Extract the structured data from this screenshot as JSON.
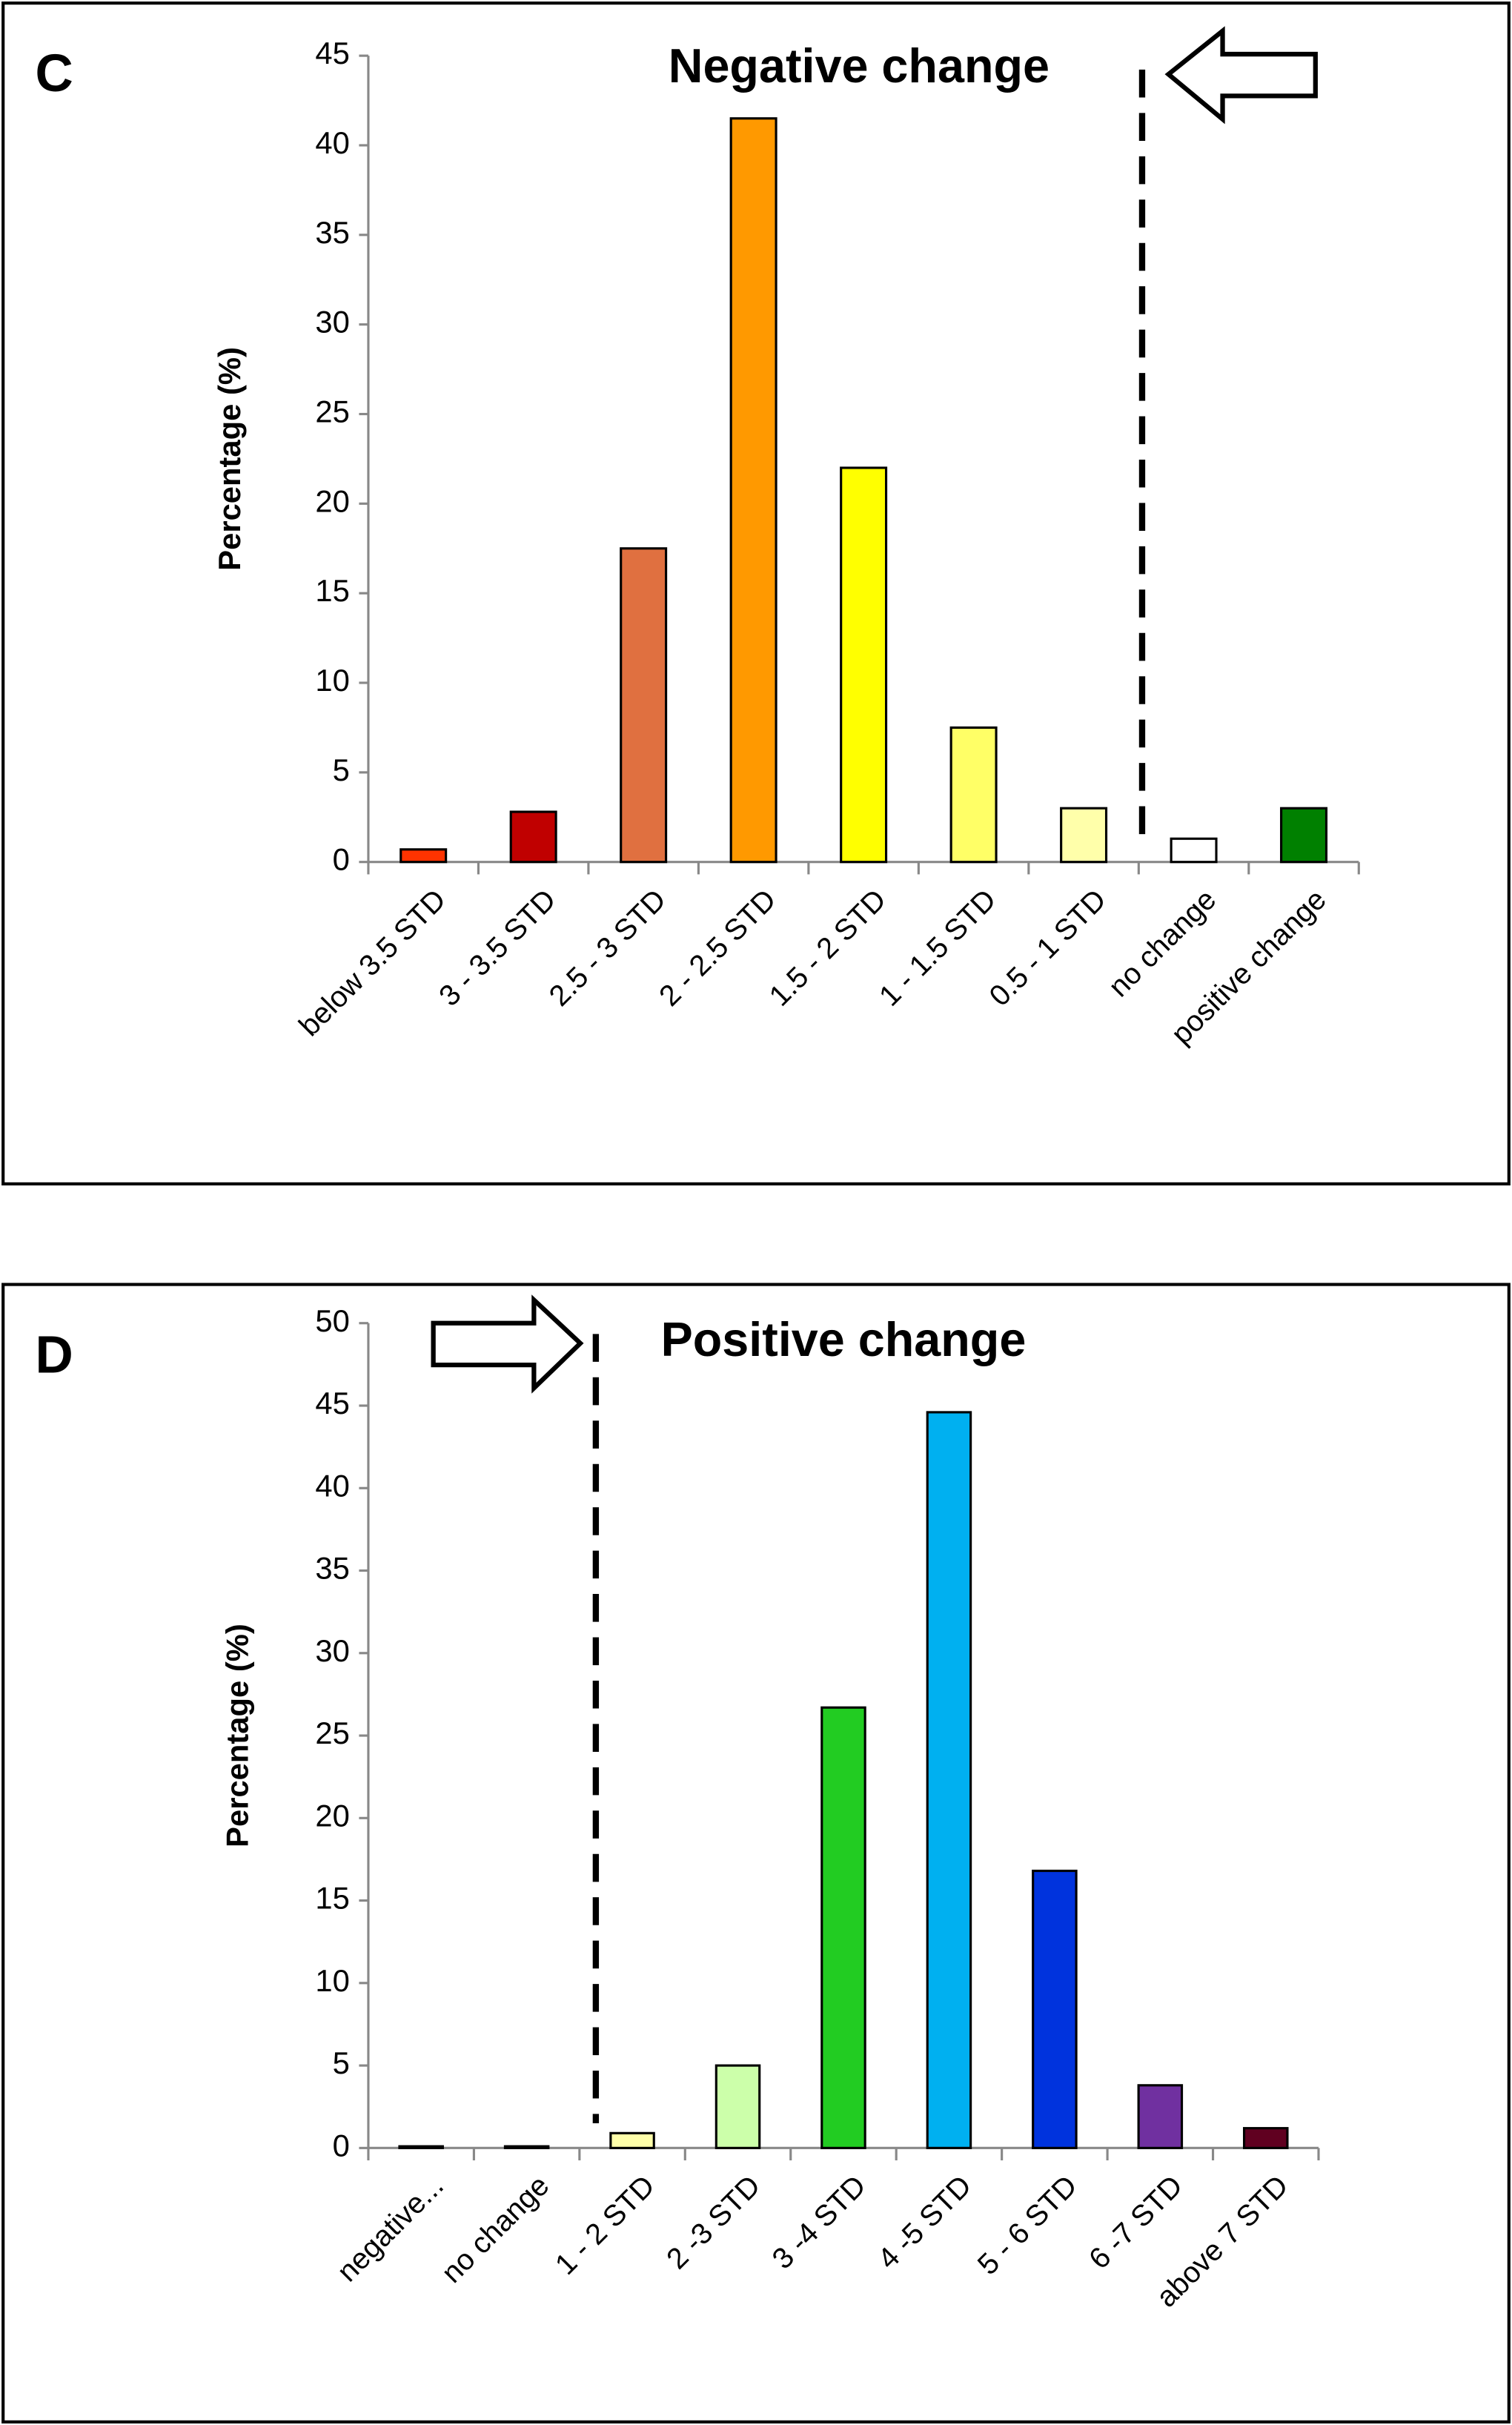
{
  "chart_data": [
    {
      "type": "bar",
      "panel_label": "C",
      "title": "Negative change",
      "y_label": "Percentage (%)",
      "categories": [
        "below 3.5 STD",
        "3 - 3.5 STD",
        "2.5 - 3 STD",
        "2 - 2.5 STD",
        "1.5 - 2 STD",
        "1 - 1.5 STD",
        "0.5 - 1 STD",
        "no change",
        "positive change"
      ],
      "values": [
        0.7,
        2.8,
        17.5,
        41.5,
        22,
        7.5,
        3,
        1.3,
        3
      ],
      "colors": [
        "#ff3300",
        "#c00000",
        "#e07040",
        "#ff9900",
        "#ffff00",
        "#ffff66",
        "#ffffaa",
        "#ffffff",
        "#008000"
      ],
      "ylim": [
        0,
        45
      ],
      "yticks": [
        0,
        5,
        10,
        15,
        20,
        25,
        30,
        35,
        40,
        45
      ]
    },
    {
      "type": "bar",
      "panel_label": "D",
      "title": "Positive change",
      "y_label": "Percentage (%)",
      "categories": [
        "negative...",
        "no change",
        "1 - 2 STD",
        "2 -3 STD",
        "3 -4 STD",
        "4 -5 STD",
        "5 - 6 STD",
        "6 -7 STD",
        "above 7 STD"
      ],
      "values": [
        0.1,
        0.1,
        0.9,
        5,
        26.7,
        44.6,
        16.8,
        3.8,
        1.2
      ],
      "colors": [
        "#333333",
        "#333333",
        "#ffffaa",
        "#ccffaa",
        "#22cc22",
        "#00b0f0",
        "#0033dd",
        "#7030a0",
        "#600020"
      ],
      "ylim": [
        0,
        50
      ],
      "yticks": [
        0,
        5,
        10,
        15,
        20,
        25,
        30,
        35,
        40,
        45,
        50
      ]
    }
  ]
}
